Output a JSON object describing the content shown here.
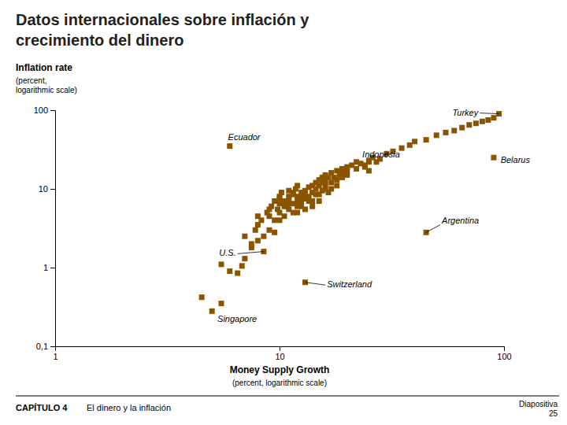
{
  "chart_data": {
    "type": "scatter",
    "title": "Datos internacionales sobre inflación y\ncrecimiento del dinero",
    "xlabel": "Money Supply Growth",
    "xlabel_sub": "(percent, logarithmic scale)",
    "ylabel": "Inflation rate",
    "ylabel_sub": "(percent,\nlogarithmic scale)",
    "footer": [
      "CAPÍTULO 4",
      "El dinero y la inflación",
      "Diapositiva\n25"
    ],
    "color": "#8B5500",
    "marker": "square",
    "log": true,
    "grid": false,
    "xlim": [
      1,
      100
    ],
    "ylim": [
      0.1,
      100
    ],
    "xticks": [
      1,
      10,
      100
    ],
    "yticks": [
      {
        "value": 0.1,
        "label": "0,1"
      },
      1,
      10,
      100
    ],
    "x": [
      5.0,
      5.5,
      4.5,
      5.5,
      6.0,
      6.5,
      6.8,
      7.0,
      7.5,
      7.0,
      7.5,
      8.0,
      7.8,
      8.5,
      8.0,
      8.3,
      9.0,
      9.0,
      8.8,
      9.5,
      9.2,
      9.8,
      10.0,
      10.0,
      10.0,
      10.5,
      10.2,
      10.8,
      11.0,
      11.0,
      11.0,
      11.5,
      11.5,
      11.8,
      12.0,
      12.0,
      12.0,
      12.5,
      12.5,
      13.0,
      13.0,
      13.0,
      13.5,
      13.5,
      14.0,
      14.0,
      14.0,
      14.5,
      14.5,
      15.0,
      15.0,
      15.0,
      15.5,
      15.5,
      16.0,
      16.0,
      16.0,
      16.5,
      17.0,
      17.0,
      17.5,
      18.0,
      18.0,
      18.5,
      19.0,
      19.0,
      20.0,
      20.0,
      21.0,
      22.0,
      22.0,
      23.0,
      24.0,
      25.0,
      25.0,
      26.0,
      27.0,
      28.0,
      30.0,
      32.0,
      35.0,
      38.0,
      40.0,
      45.0,
      50.0,
      55.0,
      60.0,
      65.0,
      70.0,
      75.0,
      80.0,
      85.0,
      90.0,
      95.0,
      6.0,
      24.0,
      13.0,
      45.0,
      90.0,
      8.5,
      9.5,
      10.5,
      11.5,
      12.5,
      13.5,
      14.5,
      15.5,
      10.0,
      11.0,
      12.0,
      16.0,
      17.0,
      18.0,
      9.0,
      10.0,
      11.0,
      12.0,
      13.0,
      14.0,
      15.0,
      16.5,
      19.0,
      20.0,
      8.0,
      9.5,
      10.5,
      11.5,
      12.5,
      25.0
    ],
    "values": [
      0.28,
      0.35,
      0.42,
      1.1,
      0.9,
      0.85,
      1.05,
      1.3,
      2.0,
      2.5,
      1.8,
      2.2,
      3.0,
      2.5,
      3.5,
      4.0,
      3.0,
      4.5,
      5.0,
      4.0,
      6.0,
      5.5,
      5.0,
      6.5,
      8.0,
      7.0,
      9.0,
      6.0,
      5.5,
      7.5,
      9.5,
      8.5,
      6.5,
      10.0,
      8.0,
      6.0,
      11.0,
      9.0,
      7.0,
      9.5,
      7.5,
      5.5,
      10.5,
      8.0,
      11.0,
      9.0,
      7.0,
      12.0,
      10.0,
      13.0,
      11.0,
      8.5,
      14.0,
      12.0,
      15.0,
      13.0,
      10.0,
      14.0,
      16.0,
      12.0,
      14.0,
      17.0,
      13.0,
      15.0,
      18.0,
      14.0,
      19.0,
      15.0,
      20.0,
      18.0,
      22.0,
      21.0,
      19.0,
      23.0,
      17.0,
      25.0,
      22.0,
      24.0,
      28.0,
      30.0,
      33.0,
      36.0,
      40.0,
      42.0,
      48.0,
      52.0,
      55.0,
      60.0,
      65.0,
      68.0,
      72.0,
      75.0,
      80.0,
      90.0,
      35.0,
      20.0,
      0.65,
      2.8,
      25.0,
      1.6,
      2.8,
      4.5,
      5.0,
      6.0,
      7.0,
      8.5,
      9.5,
      7.5,
      6.5,
      5.0,
      11.5,
      10.0,
      11.0,
      5.5,
      4.0,
      8.0,
      7.0,
      8.5,
      6.0,
      7.0,
      9.0,
      16.0,
      17.0,
      4.5,
      7.0,
      6.0,
      9.0,
      8.0,
      22.0
    ],
    "annotations": [
      {
        "text": "Turkey",
        "x": 95,
        "y": 90,
        "text_x": 78,
        "text_y": 92,
        "arrow": true
      },
      {
        "text": "Belarus",
        "text_x": 95,
        "text_y": 23,
        "arrow": false
      },
      {
        "text": "Ecuador",
        "text_x": 5.8,
        "text_y": 45,
        "arrow": false
      },
      {
        "text": "Indonesia",
        "text_x": 23,
        "text_y": 27,
        "arrow": false
      },
      {
        "text": "Argentina",
        "x": 45,
        "y": 2.8,
        "text_x": 52,
        "text_y": 3.5,
        "arrow": true
      },
      {
        "text": "Switzerland",
        "x": 13,
        "y": 0.65,
        "text_x": 16,
        "text_y": 0.6,
        "arrow": true
      },
      {
        "text": "U.S.",
        "x": 8.5,
        "y": 1.6,
        "text_x": 6.5,
        "text_y": 1.5,
        "arrow": true
      },
      {
        "text": "Singapore",
        "text_x": 5.2,
        "text_y": 0.22,
        "arrow": false
      }
    ]
  }
}
